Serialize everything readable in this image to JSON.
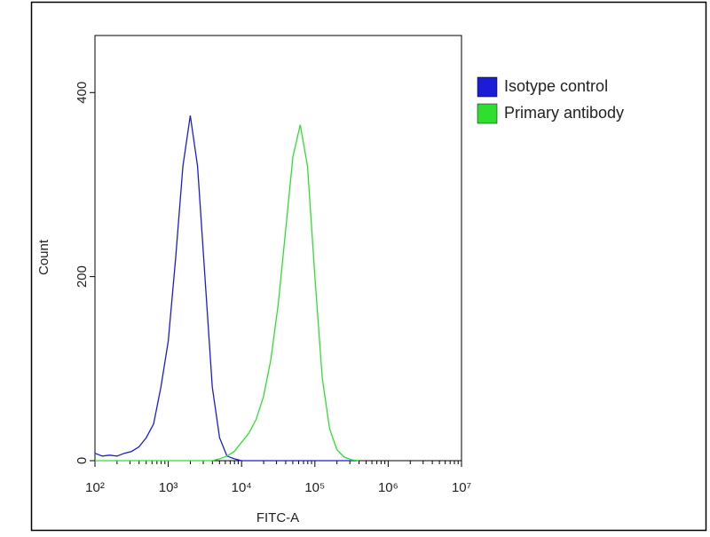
{
  "chart_data": {
    "type": "line",
    "xlabel": "FITC-A",
    "ylabel": "Count",
    "log_x": true,
    "xlim": [
      100,
      10000000
    ],
    "xticks": [
      {
        "value": 100,
        "label": "10²"
      },
      {
        "value": 1000,
        "label": "10³"
      },
      {
        "value": 10000,
        "label": "10⁴"
      },
      {
        "value": 100000,
        "label": "10⁵"
      },
      {
        "value": 1000000,
        "label": "10⁶"
      },
      {
        "value": 10000000,
        "label": "10⁷"
      }
    ],
    "ylim": [
      0,
      462
    ],
    "yticks": [
      0,
      200,
      400
    ],
    "legend": "upper right",
    "x": [
      100,
      126,
      158,
      200,
      251,
      316,
      398,
      501,
      631,
      794,
      1000,
      1259,
      1585,
      1995,
      2512,
      3162,
      3981,
      5012,
      6310,
      7943,
      10000,
      12589,
      15849,
      19953,
      25119,
      31623,
      39811,
      50119,
      63096,
      79433,
      100000,
      125893,
      158489,
      199526,
      251189,
      316228,
      398107
    ],
    "series": [
      {
        "name": "Isotype control",
        "color": "#1c1cd8",
        "values": [
          8,
          5,
          6,
          5,
          8,
          10,
          15,
          25,
          40,
          80,
          130,
          220,
          320,
          375,
          320,
          200,
          80,
          25,
          5,
          2,
          0,
          0,
          0,
          0,
          0,
          0,
          0,
          0,
          0,
          0,
          0,
          0,
          0,
          0,
          0,
          0,
          0
        ]
      },
      {
        "name": "Primary antibody",
        "color": "#2ee02e",
        "values": [
          0,
          0,
          0,
          0,
          0,
          0,
          0,
          0,
          0,
          0,
          0,
          0,
          0,
          0,
          0,
          0,
          0,
          2,
          5,
          10,
          20,
          30,
          45,
          70,
          110,
          170,
          250,
          330,
          365,
          320,
          200,
          90,
          35,
          12,
          4,
          1,
          0
        ]
      }
    ]
  }
}
